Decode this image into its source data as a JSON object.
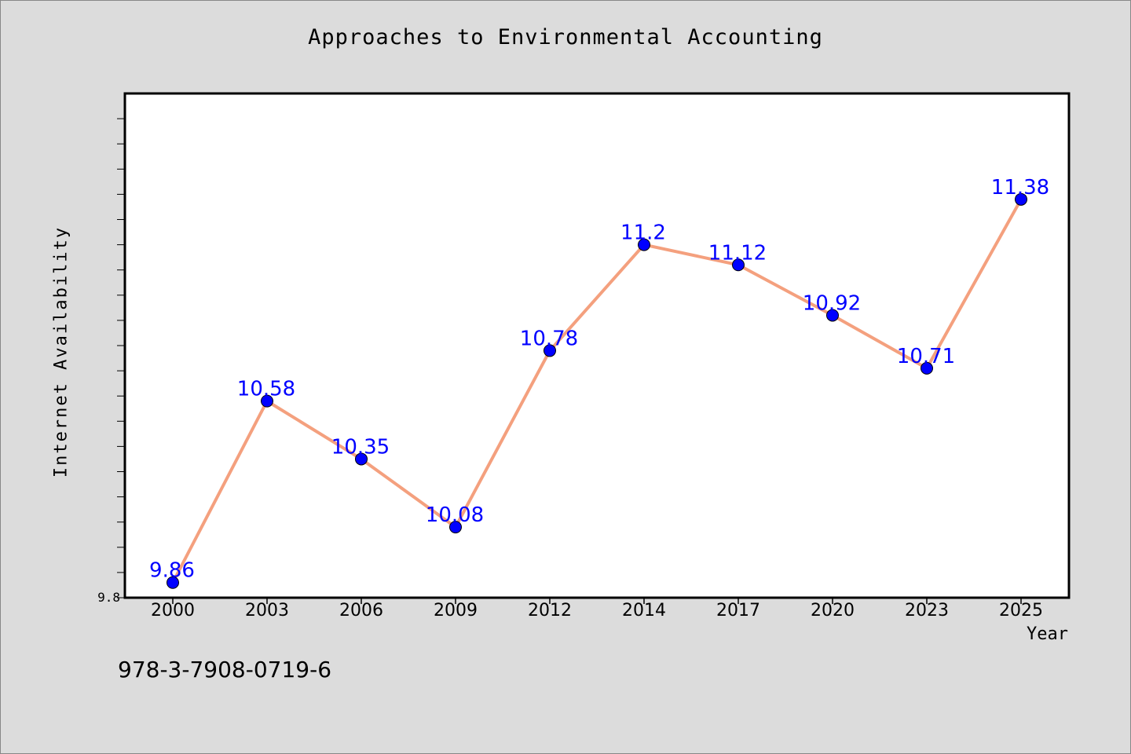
{
  "chart_data": {
    "type": "line",
    "title": "Approaches to Environmental Accounting",
    "xlabel": "Year",
    "ylabel": "Internet Availability",
    "categories": [
      "2000",
      "2003",
      "2006",
      "2009",
      "2012",
      "2014",
      "2017",
      "2020",
      "2023",
      "2025"
    ],
    "series": [
      {
        "values": [
          9.86,
          10.58,
          10.35,
          10.08,
          10.78,
          11.2,
          11.12,
          10.92,
          10.71,
          11.38
        ],
        "labels": [
          "9.86",
          "10.58",
          "10.35",
          "10.08",
          "10.78",
          "11.2",
          "11.12",
          "10.92",
          "10.71",
          "11.38"
        ],
        "line_color": "#f4a07e",
        "marker_color": "#0000ff"
      }
    ],
    "ylim": [
      9.8,
      11.8
    ],
    "ytick_labels": [
      "9.8"
    ],
    "grid": false,
    "data_label_color": "#0000ff"
  },
  "footer": {
    "identifier": "978-3-7908-0719-6"
  }
}
